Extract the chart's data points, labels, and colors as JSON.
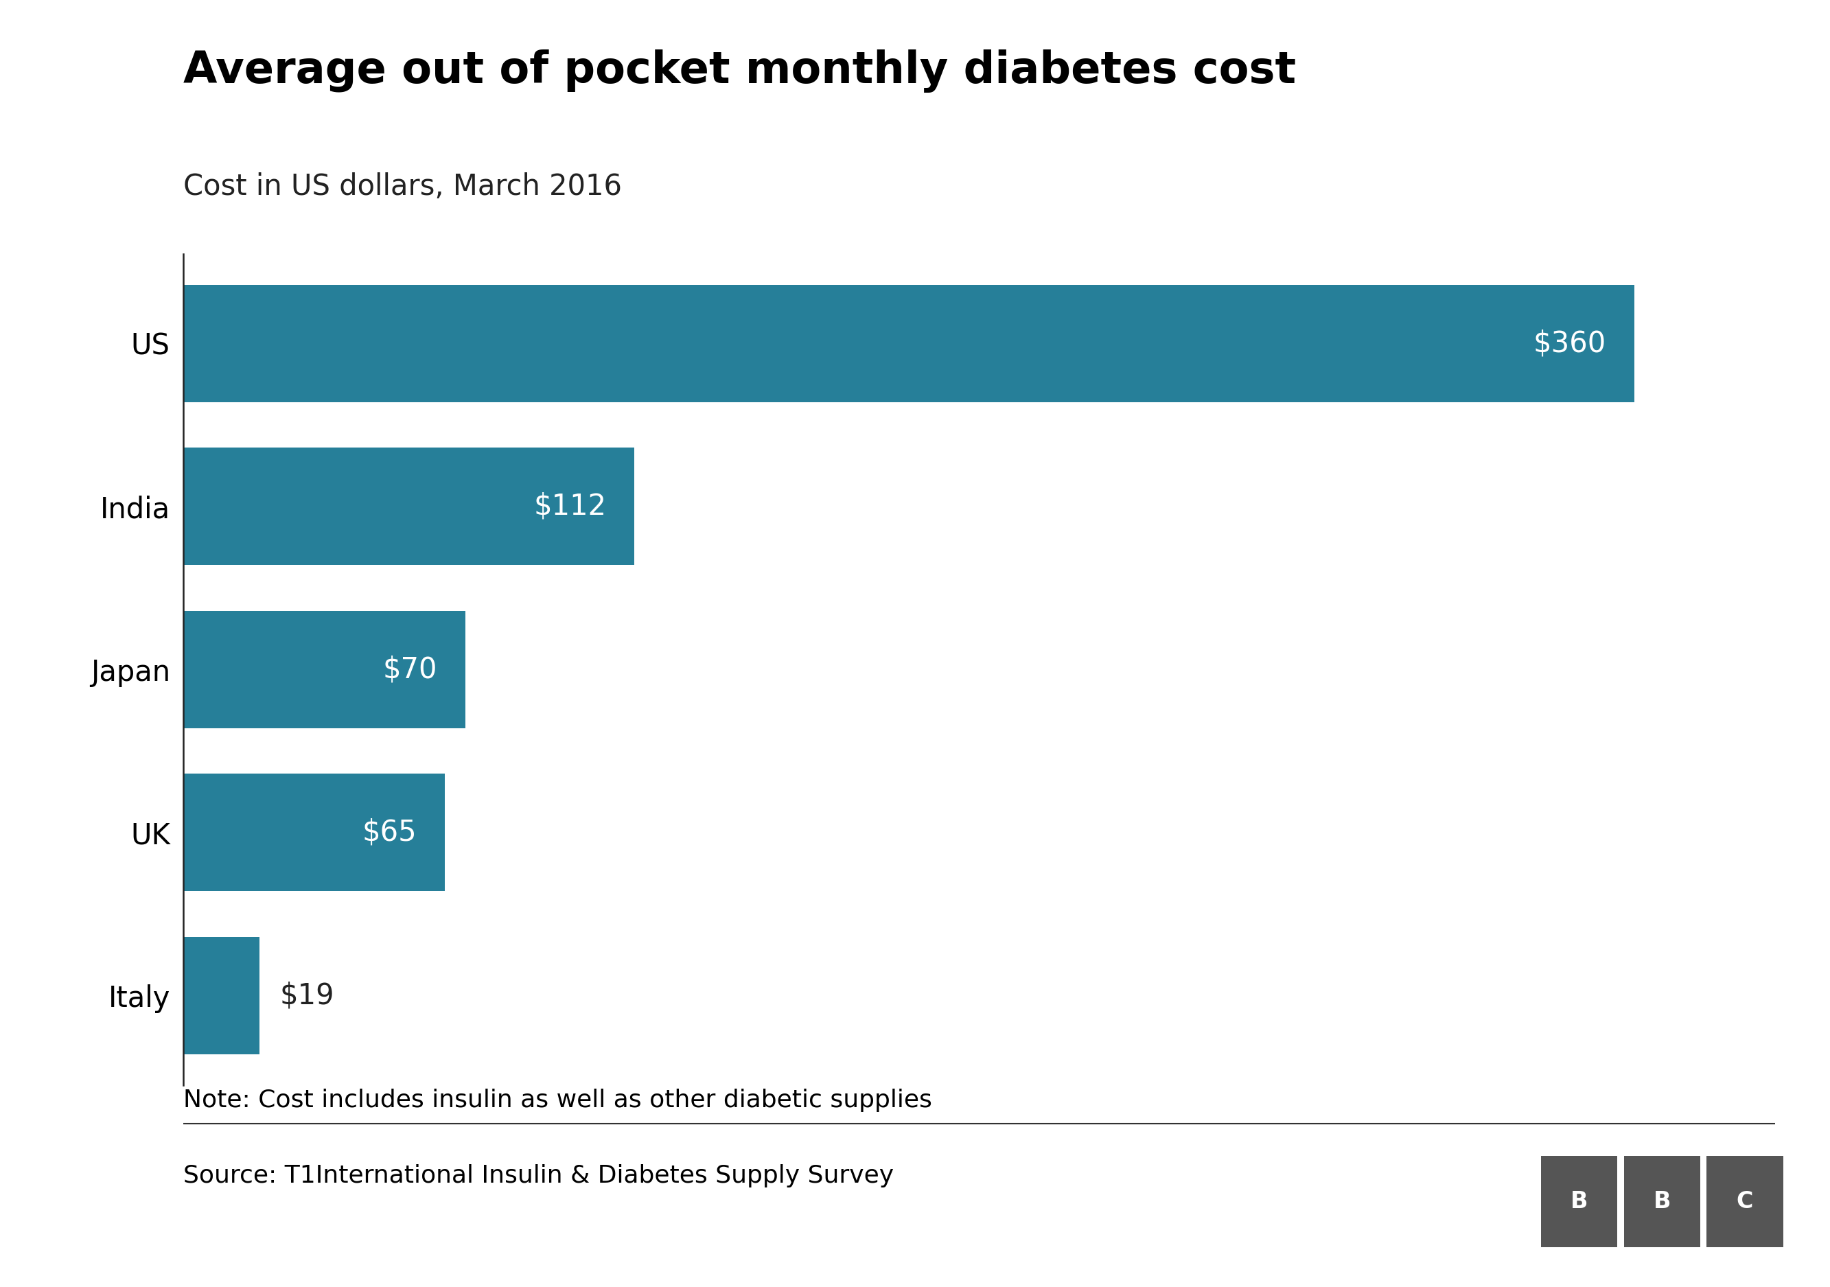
{
  "title": "Average out of pocket monthly diabetes cost",
  "subtitle": "Cost in US dollars, March 2016",
  "note": "Note: Cost includes insulin as well as other diabetic supplies",
  "source": "Source: T1International Insulin & Diabetes Supply Survey",
  "categories": [
    "US",
    "India",
    "Japan",
    "UK",
    "Italy"
  ],
  "values": [
    360,
    112,
    70,
    65,
    19
  ],
  "labels": [
    "$360",
    "$112",
    "$70",
    "$65",
    "$19"
  ],
  "bar_color": "#267f99",
  "label_color_inside": "#ffffff",
  "label_color_outside": "#222222",
  "background_color": "#ffffff",
  "title_fontsize": 46,
  "subtitle_fontsize": 30,
  "label_fontsize": 30,
  "ytick_fontsize": 30,
  "note_fontsize": 26,
  "source_fontsize": 26,
  "xlim": [
    0,
    395
  ],
  "bar_height": 0.72,
  "label_inside_threshold": 35,
  "bbc_color": "#555555"
}
